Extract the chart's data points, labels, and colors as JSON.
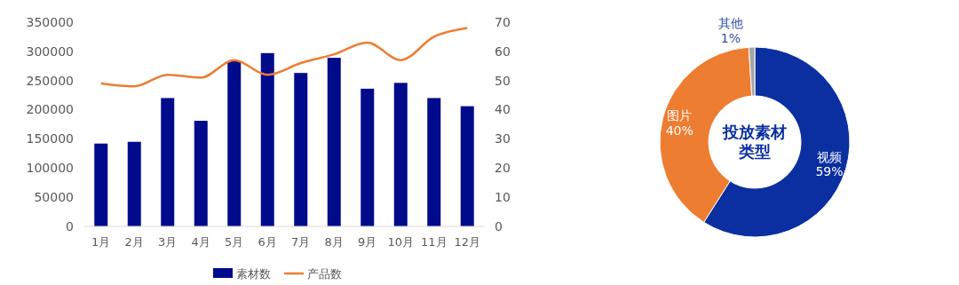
{
  "chart_data": [
    {
      "type": "bar",
      "categories": [
        "1月",
        "2月",
        "3月",
        "4月",
        "5月",
        "6月",
        "7月",
        "8月",
        "9月",
        "10月",
        "11月",
        "12月"
      ],
      "series": [
        {
          "name": "素材数",
          "type": "bar",
          "color": "#000b8c",
          "values": [
            142000,
            145000,
            220000,
            181000,
            283000,
            297000,
            263000,
            289000,
            236000,
            246000,
            220000,
            206000
          ]
        },
        {
          "name": "产品数",
          "type": "line",
          "axis": "y2",
          "color": "#ed7d31",
          "values": [
            49,
            48,
            52,
            51,
            57,
            52,
            56,
            59,
            63,
            57,
            65,
            68
          ]
        }
      ],
      "ylim": [
        0,
        350000
      ],
      "yticks": [
        0,
        50000,
        100000,
        150000,
        200000,
        250000,
        300000,
        350000
      ],
      "y2lim": [
        0,
        70
      ],
      "y2ticks": [
        0,
        10,
        20,
        30,
        40,
        50,
        60,
        70
      ],
      "legend": "bottom",
      "grid": false,
      "marker": "none",
      "line_style": "solid"
    },
    {
      "type": "donut",
      "title": "投放素材类型",
      "categories": [
        "视频",
        "图片",
        "其他"
      ],
      "values": [
        59,
        40,
        1
      ],
      "colors": [
        "#0b2fa0",
        "#ed7d31",
        "#a5a5a5"
      ],
      "value_labels": [
        "59%",
        "40%",
        "1%"
      ]
    }
  ]
}
